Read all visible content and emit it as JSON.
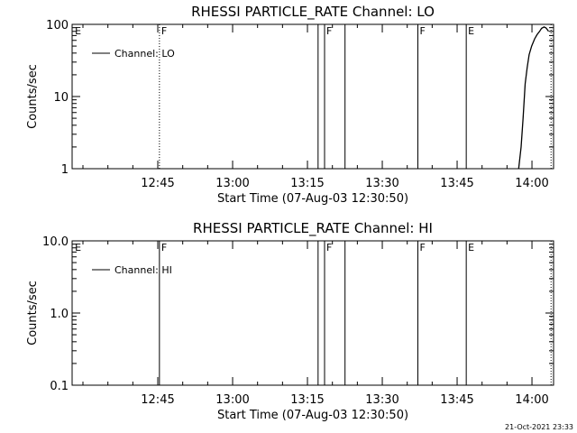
{
  "footer": {
    "timestamp": "21-Oct-2021 23:33"
  },
  "chart_data": [
    {
      "type": "line",
      "title": "RHESSI PARTICLE_RATE Channel: LO",
      "xlabel": "Start Time (07-Aug-03 12:30:50)",
      "ylabel": "Counts/sec",
      "yscale": "log",
      "xlim_minutes": [
        12.0,
        108.5
      ],
      "ylim": [
        1,
        100
      ],
      "x_ticks": [
        {
          "value": 29.17,
          "label": "12:45"
        },
        {
          "value": 44.17,
          "label": "13:00"
        },
        {
          "value": 59.17,
          "label": "13:15"
        },
        {
          "value": 74.17,
          "label": "13:30"
        },
        {
          "value": 89.17,
          "label": "13:45"
        },
        {
          "value": 104.17,
          "label": "14:00"
        }
      ],
      "y_ticks": [
        {
          "value": 1,
          "label": "1"
        },
        {
          "value": 10,
          "label": "10"
        },
        {
          "value": 100,
          "label": "100"
        }
      ],
      "legend": {
        "label": "Channel: LO",
        "position": "top-left"
      },
      "flags": [
        {
          "x": 12.2,
          "label": "E",
          "style": "none"
        },
        {
          "x": 29.5,
          "label": "F",
          "style": "dotted"
        },
        {
          "x": 61.3,
          "label": "",
          "style": "solid"
        },
        {
          "x": 62.6,
          "label": "F",
          "style": "solid"
        },
        {
          "x": 66.7,
          "label": "",
          "style": "solid"
        },
        {
          "x": 81.3,
          "label": "F",
          "style": "solid"
        },
        {
          "x": 91.0,
          "label": "E",
          "style": "solid"
        },
        {
          "x": 108.0,
          "label": "",
          "style": "dotted"
        }
      ],
      "series": [
        {
          "x": [
            101.5,
            102.0,
            102.4,
            102.8,
            103.2,
            103.6,
            104.1,
            104.7,
            105.2,
            105.7,
            106.1,
            106.6,
            107.0,
            107.5
          ],
          "y": [
            1.0,
            2.0,
            5.0,
            15.0,
            25.0,
            38.0,
            50.0,
            63.0,
            72.0,
            80.0,
            88.0,
            92.0,
            89.0,
            80.0
          ]
        }
      ]
    },
    {
      "type": "line",
      "title": "RHESSI PARTICLE_RATE Channel: HI",
      "xlabel": "Start Time (07-Aug-03 12:30:50)",
      "ylabel": "Counts/sec",
      "yscale": "log",
      "xlim_minutes": [
        12.0,
        108.5
      ],
      "ylim": [
        0.1,
        10.0
      ],
      "x_ticks": [
        {
          "value": 29.17,
          "label": "12:45"
        },
        {
          "value": 44.17,
          "label": "13:00"
        },
        {
          "value": 59.17,
          "label": "13:15"
        },
        {
          "value": 74.17,
          "label": "13:30"
        },
        {
          "value": 89.17,
          "label": "13:45"
        },
        {
          "value": 104.17,
          "label": "14:00"
        }
      ],
      "y_ticks": [
        {
          "value": 0.1,
          "label": "0.1"
        },
        {
          "value": 1.0,
          "label": "1.0"
        },
        {
          "value": 10.0,
          "label": "10.0"
        }
      ],
      "legend": {
        "label": "Channel: HI",
        "position": "top-left"
      },
      "flags": [
        {
          "x": 12.2,
          "label": "E",
          "style": "none"
        },
        {
          "x": 29.5,
          "label": "F",
          "style": "solid"
        },
        {
          "x": 61.3,
          "label": "",
          "style": "solid"
        },
        {
          "x": 62.6,
          "label": "F",
          "style": "solid"
        },
        {
          "x": 66.7,
          "label": "",
          "style": "solid"
        },
        {
          "x": 81.3,
          "label": "F",
          "style": "solid"
        },
        {
          "x": 91.0,
          "label": "E",
          "style": "solid"
        },
        {
          "x": 108.0,
          "label": "",
          "style": "dotted"
        }
      ],
      "series": [
        {
          "x": [],
          "y": []
        }
      ]
    }
  ]
}
